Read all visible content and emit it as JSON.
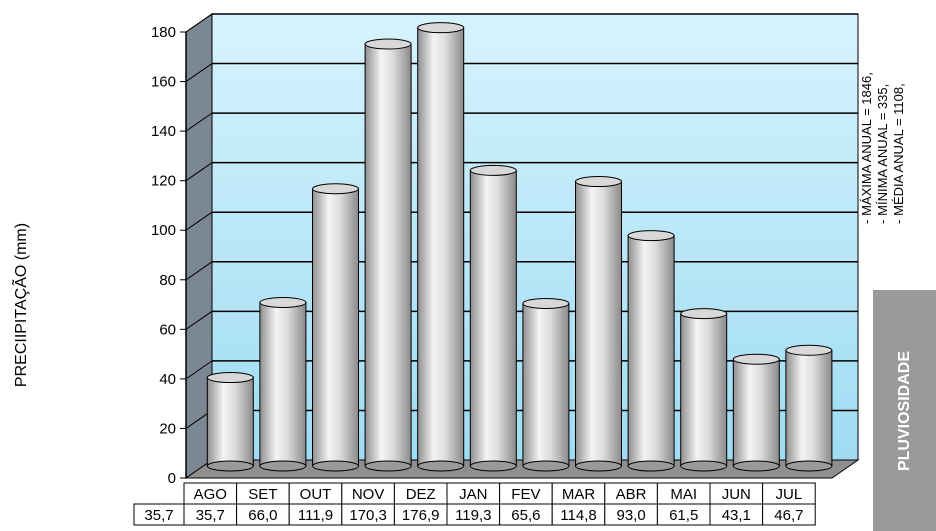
{
  "chart_data": {
    "type": "bar",
    "ylabel": "PRECIIPITAÇÃO (mm)",
    "categories": [
      "AGO",
      "SET",
      "OUT",
      "NOV",
      "DEZ",
      "JAN",
      "FEV",
      "MAR",
      "ABR",
      "MAI",
      "JUN",
      "JUL"
    ],
    "values": [
      35.7,
      66.0,
      111.9,
      170.3,
      176.9,
      119.3,
      65.6,
      114.8,
      93.0,
      61.5,
      43.1,
      46.7
    ],
    "value_labels": [
      "35,7",
      "66,0",
      "111,9",
      "170,3",
      "176,9",
      "119,3",
      "65,6",
      "114,8",
      "93,0",
      "61,5",
      "43,1",
      "46,7"
    ],
    "table_first_cell": "35,7",
    "yticks": [
      0,
      20,
      40,
      60,
      80,
      100,
      120,
      140,
      160,
      180
    ],
    "ylim": [
      0,
      180
    ],
    "grid": true,
    "style": "3d-cylinder",
    "colors": {
      "plot_background": "#bfeaf9",
      "bar": "#cfcfcf",
      "wall_side": "#7b8893",
      "floor": "#8f8f8f"
    }
  },
  "side_stats": {
    "lines": [
      "- MÁXIMA ANUAL =   1846,",
      "- MÍNIMA ANUAL =   335,",
      "- MÉDIA ANUAL =   1108,"
    ]
  },
  "badge": {
    "label": "PLUVIOSIDADE"
  }
}
